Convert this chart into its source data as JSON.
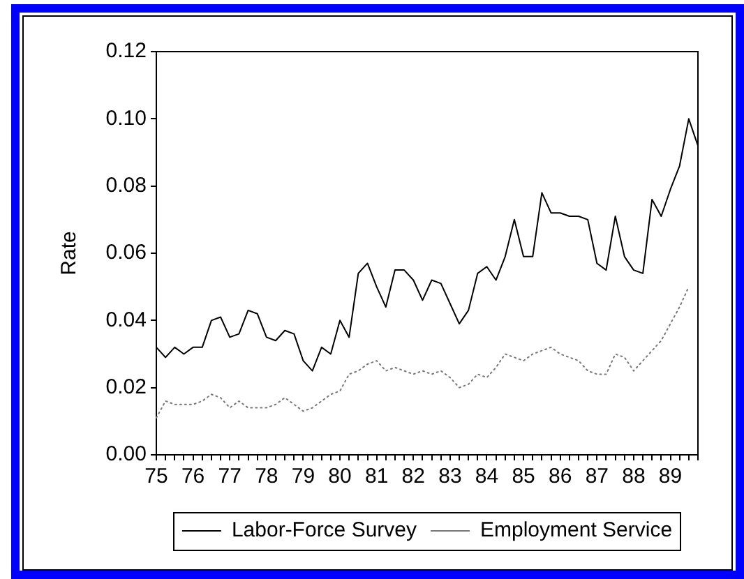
{
  "chart_data": {
    "type": "line",
    "ylabel": "Rate",
    "categories": [
      "75",
      null,
      null,
      null,
      "76",
      null,
      null,
      null,
      "77",
      null,
      null,
      null,
      "78",
      null,
      null,
      null,
      "79",
      null,
      null,
      null,
      "80",
      null,
      null,
      null,
      "81",
      null,
      null,
      null,
      "82",
      null,
      null,
      null,
      "83",
      null,
      null,
      null,
      "84",
      null,
      null,
      null,
      "85",
      null,
      null,
      null,
      "86",
      null,
      null,
      null,
      "87",
      null,
      null,
      null,
      "88",
      null,
      null,
      null,
      "89",
      null,
      null,
      null
    ],
    "series": [
      {
        "name": "Labor-Force Survey",
        "color": "#000000",
        "line_style": "solid",
        "values": [
          0.032,
          0.029,
          0.032,
          0.03,
          0.032,
          0.032,
          0.04,
          0.041,
          0.035,
          0.036,
          0.043,
          0.042,
          0.035,
          0.034,
          0.037,
          0.036,
          0.028,
          0.025,
          0.032,
          0.03,
          0.04,
          0.035,
          0.054,
          0.057,
          0.05,
          0.044,
          0.055,
          0.055,
          0.052,
          0.046,
          0.052,
          0.051,
          0.045,
          0.039,
          0.043,
          0.054,
          0.056,
          0.052,
          0.059,
          0.07,
          0.059,
          0.059,
          0.078,
          0.072,
          0.072,
          0.071,
          0.071,
          0.07,
          0.057,
          0.055,
          0.071,
          0.059,
          0.055,
          0.054,
          0.076,
          0.071,
          0.079,
          0.086,
          0.1,
          0.092
        ]
      },
      {
        "name": "Employment Service",
        "color": "#777777",
        "line_style": "dotted",
        "values": [
          0.011,
          0.016,
          0.015,
          0.015,
          0.015,
          0.016,
          0.018,
          0.017,
          0.014,
          0.016,
          0.014,
          0.014,
          0.014,
          0.015,
          0.017,
          0.015,
          0.013,
          0.014,
          0.016,
          0.018,
          0.019,
          0.024,
          0.025,
          0.027,
          0.028,
          0.025,
          0.026,
          0.025,
          0.024,
          0.025,
          0.024,
          0.025,
          0.023,
          0.02,
          0.021,
          0.024,
          0.023,
          0.026,
          0.03,
          0.029,
          0.028,
          0.03,
          0.031,
          0.032,
          0.03,
          0.029,
          0.028,
          0.025,
          0.024,
          0.024,
          0.03,
          0.029,
          0.025,
          0.028,
          0.031,
          0.034,
          0.039,
          0.044,
          0.05,
          null
        ]
      }
    ],
    "ylim": [
      0,
      0.12
    ],
    "yticks": [
      {
        "value": 0,
        "label": "0.00"
      },
      0.02,
      0.04,
      0.06,
      0.08,
      {
        "value": 0.1,
        "label": "0.10"
      },
      0.12
    ],
    "legend": "bottom"
  }
}
